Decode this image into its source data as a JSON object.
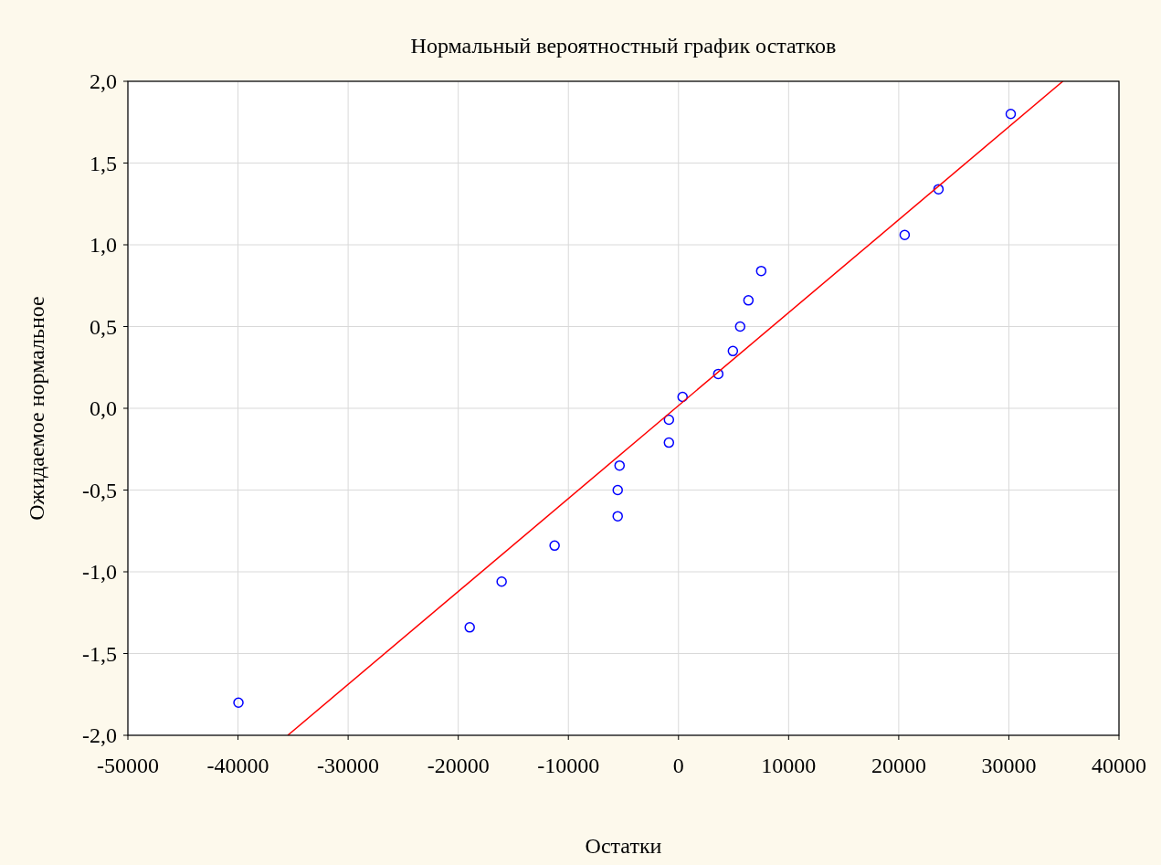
{
  "chart_data": {
    "type": "scatter",
    "title": "Нормальный вероятностный график остатков",
    "xlabel": "Остатки",
    "ylabel": "Ожидаемое нормальное",
    "xlim": [
      -50000,
      40000
    ],
    "xticks": [
      -50000,
      -40000,
      -30000,
      -20000,
      -10000,
      0,
      10000,
      20000,
      30000,
      40000
    ],
    "ylim": [
      -2,
      2
    ],
    "yticks": [
      {
        "value": -2,
        "label": "-2,0"
      },
      {
        "value": -1.5,
        "label": "-1,5"
      },
      {
        "value": -1,
        "label": "-1,0"
      },
      {
        "value": -0.5,
        "label": "-0,5"
      },
      {
        "value": 0,
        "label": "0,0"
      },
      {
        "value": 0.5,
        "label": "0,5"
      },
      {
        "value": 1,
        "label": "1,0"
      },
      {
        "value": 1.5,
        "label": "1,5"
      },
      {
        "value": 2,
        "label": "2,0"
      }
    ],
    "grid": true,
    "series": [
      {
        "marker": "circle",
        "color": "#0000ff",
        "x": [
          -39960,
          -18960,
          -16060,
          -11250,
          -5520,
          -5520,
          -5350,
          -870,
          -870,
          370,
          3610,
          4940,
          5600,
          6350,
          7510,
          20540,
          23610,
          30170
        ],
        "values": [
          -1.8,
          -1.34,
          -1.06,
          -0.84,
          -0.66,
          -0.5,
          -0.35,
          -0.21,
          -0.07,
          0.07,
          0.21,
          0.35,
          0.5,
          0.66,
          0.84,
          1.06,
          1.34,
          1.8
        ]
      },
      {
        "type": "line",
        "color": "#ff0000",
        "x": [
          -35480,
          34900
        ],
        "values": [
          -2,
          2
        ]
      }
    ]
  }
}
